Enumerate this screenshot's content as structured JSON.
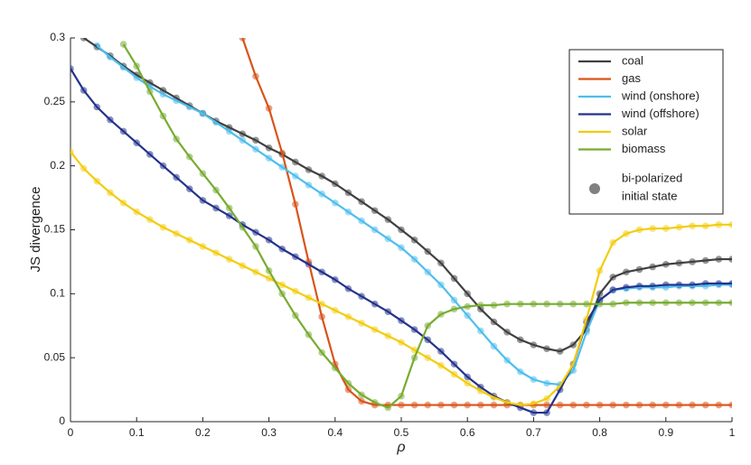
{
  "chart_data": {
    "type": "line",
    "xlabel": "ρ",
    "ylabel": "JS divergence",
    "x": [
      0,
      0.02,
      0.04,
      0.06,
      0.08,
      0.1,
      0.12,
      0.14,
      0.16,
      0.18,
      0.2,
      0.22,
      0.24,
      0.26,
      0.28,
      0.3,
      0.32,
      0.34,
      0.36,
      0.38,
      0.4,
      0.42,
      0.44,
      0.46,
      0.48,
      0.5,
      0.52,
      0.54,
      0.56,
      0.58,
      0.6,
      0.62,
      0.64,
      0.66,
      0.68,
      0.7,
      0.72,
      0.74,
      0.76,
      0.78,
      0.8,
      0.82,
      0.84,
      0.86,
      0.88,
      0.9,
      0.92,
      0.94,
      0.96,
      0.98,
      1
    ],
    "xlim": [
      0,
      1
    ],
    "xticks": [
      0,
      0.1,
      0.2,
      0.3,
      0.4,
      0.5,
      0.6,
      0.7,
      0.8,
      0.9,
      1
    ],
    "ylim": [
      0,
      0.3
    ],
    "yticks": [
      0,
      0.05,
      0.1,
      0.15,
      0.2,
      0.25,
      0.3
    ],
    "legend_position": "upper right",
    "marker_legend": [
      "bi-polarized",
      "initial state"
    ],
    "marker_legend_color": "#808080",
    "series": [
      {
        "name": "coal",
        "color": "#404040",
        "values": [
          null,
          0.3,
          0.293,
          0.286,
          0.278,
          0.271,
          0.265,
          0.259,
          0.253,
          0.247,
          0.241,
          0.235,
          0.23,
          0.225,
          0.22,
          0.214,
          0.209,
          0.203,
          0.197,
          0.192,
          0.186,
          0.179,
          0.172,
          0.165,
          0.158,
          0.15,
          0.142,
          0.133,
          0.124,
          0.112,
          0.1,
          0.088,
          0.078,
          0.07,
          0.064,
          0.06,
          0.057,
          0.055,
          0.06,
          0.072,
          0.1,
          0.113,
          0.117,
          0.119,
          0.121,
          0.123,
          0.124,
          0.125,
          0.126,
          0.127,
          0.127
        ]
      },
      {
        "name": "gas",
        "color": "#d95319",
        "values": [
          null,
          null,
          null,
          null,
          null,
          null,
          null,
          null,
          null,
          null,
          null,
          null,
          null,
          0.3,
          0.27,
          0.245,
          0.21,
          0.17,
          0.125,
          0.082,
          0.045,
          0.025,
          0.016,
          0.013,
          0.013,
          0.013,
          0.013,
          0.013,
          0.013,
          0.013,
          0.013,
          0.013,
          0.013,
          0.013,
          0.013,
          0.013,
          0.013,
          0.013,
          0.013,
          0.013,
          0.013,
          0.013,
          0.013,
          0.013,
          0.013,
          0.013,
          0.013,
          0.013,
          0.013,
          0.013,
          0.013
        ]
      },
      {
        "name": "wind (onshore)",
        "color": "#4dbeee",
        "values": [
          null,
          null,
          0.294,
          0.285,
          0.277,
          0.269,
          0.262,
          0.256,
          0.251,
          0.246,
          0.241,
          0.234,
          0.227,
          0.22,
          0.213,
          0.206,
          0.199,
          0.192,
          0.185,
          0.178,
          0.171,
          0.164,
          0.157,
          0.15,
          0.143,
          0.136,
          0.127,
          0.117,
          0.107,
          0.095,
          0.083,
          0.071,
          0.059,
          0.048,
          0.039,
          0.033,
          0.03,
          0.029,
          0.04,
          0.07,
          0.095,
          0.103,
          0.104,
          0.105,
          0.105,
          0.105,
          0.106,
          0.106,
          0.106,
          0.107,
          0.107
        ]
      },
      {
        "name": "wind (offshore)",
        "color": "#23328c",
        "values": [
          0.276,
          0.259,
          0.246,
          0.236,
          0.227,
          0.218,
          0.209,
          0.2,
          0.191,
          0.182,
          0.173,
          0.167,
          0.161,
          0.154,
          0.148,
          0.142,
          0.135,
          0.129,
          0.123,
          0.117,
          0.111,
          0.104,
          0.098,
          0.092,
          0.086,
          0.079,
          0.072,
          0.064,
          0.055,
          0.045,
          0.035,
          0.027,
          0.02,
          0.015,
          0.011,
          0.007,
          0.007,
          0.025,
          0.045,
          0.078,
          0.095,
          0.103,
          0.105,
          0.106,
          0.106,
          0.107,
          0.107,
          0.107,
          0.108,
          0.108,
          0.108
        ]
      },
      {
        "name": "solar",
        "color": "#f2cc0c",
        "values": [
          0.211,
          0.198,
          0.188,
          0.179,
          0.171,
          0.164,
          0.158,
          0.152,
          0.147,
          0.142,
          0.137,
          0.132,
          0.127,
          0.122,
          0.117,
          0.112,
          0.107,
          0.102,
          0.097,
          0.092,
          0.087,
          0.082,
          0.077,
          0.072,
          0.067,
          0.062,
          0.056,
          0.05,
          0.044,
          0.037,
          0.03,
          0.024,
          0.019,
          0.015,
          0.013,
          0.014,
          0.018,
          0.028,
          0.045,
          0.08,
          0.118,
          0.14,
          0.147,
          0.15,
          0.151,
          0.151,
          0.152,
          0.153,
          0.153,
          0.154,
          0.154
        ]
      },
      {
        "name": "biomass",
        "color": "#77ac30",
        "values": [
          null,
          null,
          null,
          null,
          0.295,
          0.278,
          0.258,
          0.239,
          0.221,
          0.207,
          0.194,
          0.181,
          0.167,
          0.152,
          0.137,
          0.118,
          0.1,
          0.083,
          0.068,
          0.054,
          0.042,
          0.03,
          0.021,
          0.015,
          0.011,
          0.02,
          0.05,
          0.075,
          0.084,
          0.088,
          0.09,
          0.091,
          0.091,
          0.092,
          0.092,
          0.092,
          0.092,
          0.092,
          0.092,
          0.092,
          0.092,
          0.092,
          0.093,
          0.093,
          0.093,
          0.093,
          0.093,
          0.093,
          0.093,
          0.093,
          0.093
        ]
      }
    ]
  }
}
